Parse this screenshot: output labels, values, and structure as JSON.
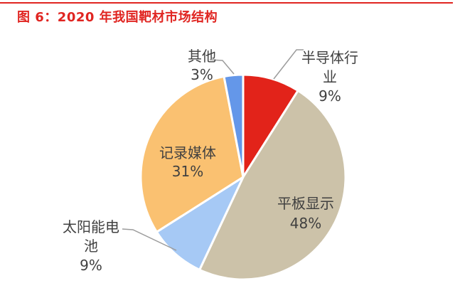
{
  "page": {
    "title": "图 6：2020 年我国靶材市场结构"
  },
  "colors": {
    "background": "#FFFFFF",
    "title": "#E02521",
    "top_rule": "#E02521",
    "label_text": "#404040",
    "leader_line": "#9C9C9C",
    "slice_border": "#FFFFFF"
  },
  "chart_data": {
    "type": "pie",
    "title": "2020 年我国靶材市场结构",
    "start_angle_deg": 0,
    "direction": "clockwise",
    "total": 100,
    "slices": [
      {
        "id": "semiconductor",
        "label": "半导体行业",
        "value_pct": 9,
        "pct_label": "9%",
        "color": "#E2231A",
        "label_position": "outside-right"
      },
      {
        "id": "flat-panel",
        "label": "平板显示",
        "value_pct": 48,
        "pct_label": "48%",
        "color": "#CCC2A9",
        "label_position": "inside"
      },
      {
        "id": "solar",
        "label": "太阳能电池",
        "value_pct": 9,
        "pct_label": "9%",
        "color": "#A6C9F5",
        "label_position": "outside-left"
      },
      {
        "id": "recording-media",
        "label": "记录媒体",
        "value_pct": 31,
        "pct_label": "31%",
        "color": "#FAC171",
        "label_position": "inside"
      },
      {
        "id": "other",
        "label": "其他",
        "value_pct": 3,
        "pct_label": "3%",
        "color": "#6497E9",
        "label_position": "outside-top"
      }
    ]
  },
  "labels": {
    "other": {
      "lines": [
        "其他",
        "3%"
      ]
    },
    "semiconductor": {
      "lines": [
        "半导体行",
        "业",
        "9%"
      ]
    },
    "solar": {
      "lines": [
        "太阳能电",
        "池",
        "9%"
      ]
    },
    "recording_media": {
      "lines": [
        "记录媒体",
        "31%"
      ]
    },
    "flat_panel": {
      "lines": [
        "平板显示",
        "48%"
      ]
    }
  }
}
